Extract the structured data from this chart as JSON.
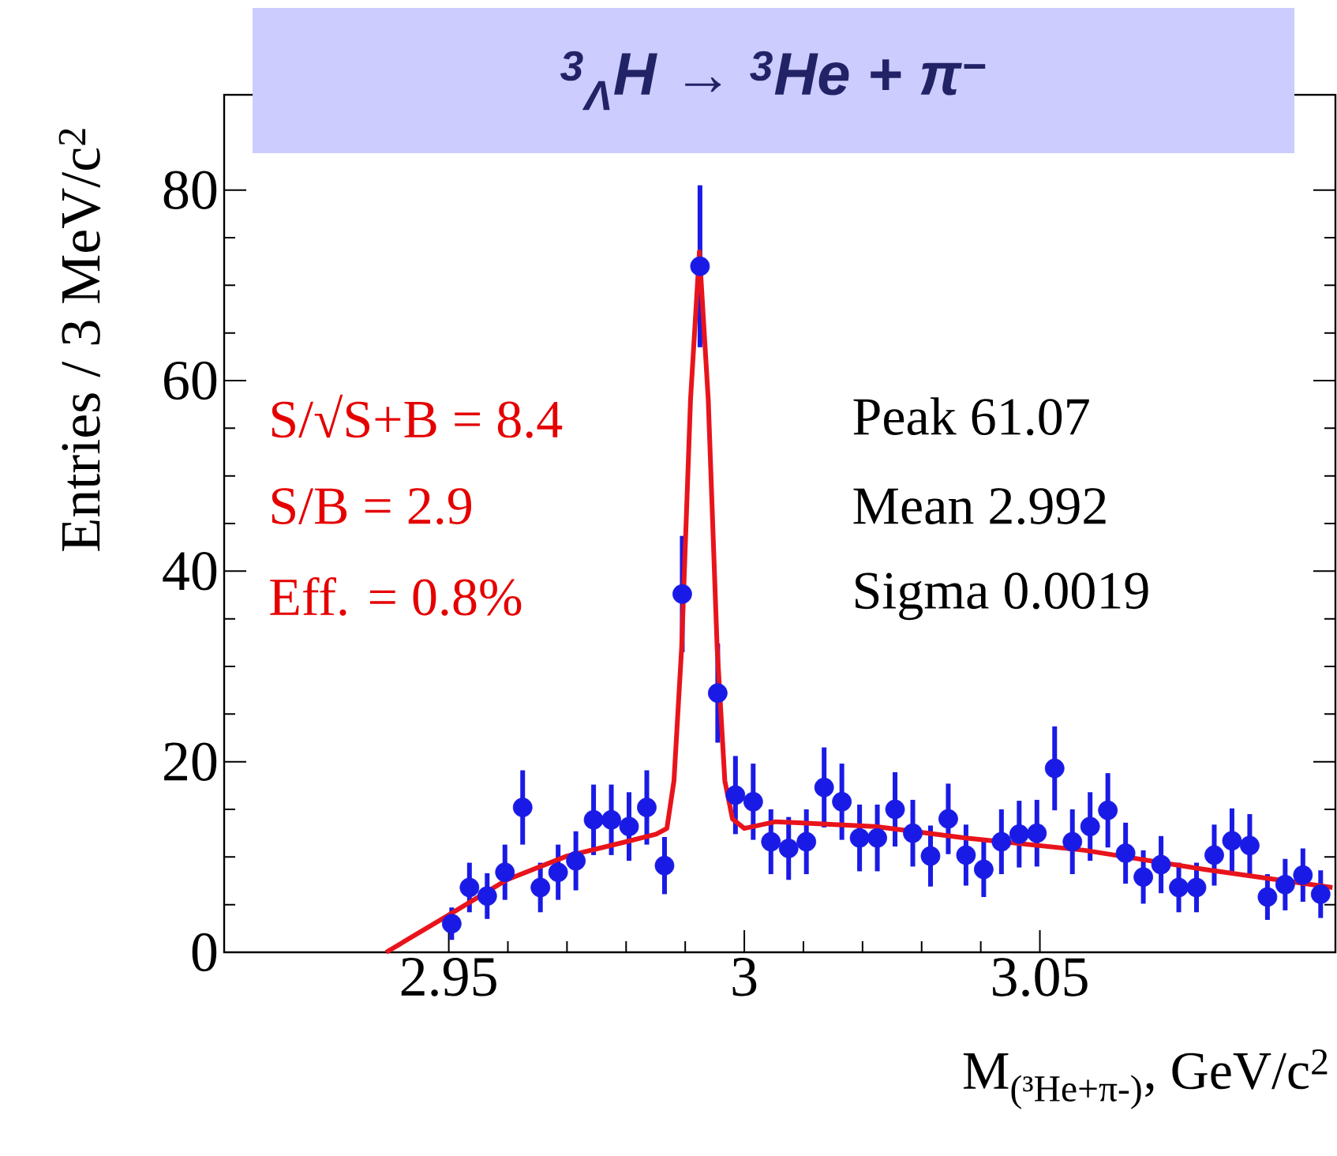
{
  "chart_data": {
    "type": "scatter",
    "title": "$^{3}$$_{Λ}$H → $^{3}$He + π$^{−}$",
    "xlabel": "M$_{(³He+π-)}$, GeV/c$^{2}$",
    "ylabel": "Entries / 3 MeV/c$^{2}$",
    "xlim": [
      2.912,
      3.1
    ],
    "ylim": [
      0,
      90
    ],
    "xticks": [
      2.95,
      3,
      3.05
    ],
    "yticks": [
      0,
      20,
      40,
      60,
      80
    ],
    "marker": "circle",
    "x": [
      2.9505,
      2.9535,
      2.9565,
      2.9595,
      2.9625,
      2.9655,
      2.9685,
      2.9715,
      2.9745,
      2.9775,
      2.9805,
      2.9835,
      2.9865,
      2.9895,
      2.9925,
      2.9955,
      2.9985,
      3.0015,
      3.0045,
      3.0075,
      3.0105,
      3.0135,
      3.0165,
      3.0195,
      3.0225,
      3.0255,
      3.0285,
      3.0315,
      3.0345,
      3.0375,
      3.0405,
      3.0435,
      3.0465,
      3.0495,
      3.0525,
      3.0555,
      3.0585,
      3.0615,
      3.0645,
      3.0675,
      3.0705,
      3.0735,
      3.0765,
      3.0795,
      3.0825,
      3.0855,
      3.0885,
      3.0915,
      3.0945,
      3.0975
    ],
    "series": [
      {
        "color": "#1a1ae6",
        "values": [
          3.0,
          6.8,
          5.9,
          8.4,
          15.2,
          6.8,
          8.4,
          9.6,
          13.9,
          13.9,
          13.2,
          15.2,
          9.1,
          37.6,
          72,
          27.2,
          16.5,
          15.8,
          11.6,
          10.9,
          11.6,
          17.3,
          15.8,
          12.0,
          12.0,
          15.0,
          12.5,
          10.1,
          14.0,
          10.2,
          8.7,
          11.6,
          12.4,
          12.5,
          19.3,
          11.6,
          13.2,
          14.9,
          10.4,
          7.9,
          9.2,
          6.8,
          6.8,
          10.2,
          11.7,
          11.2,
          5.8,
          7.1,
          8.1,
          6.1
        ],
        "errors": [
          1.7,
          2.6,
          2.4,
          2.9,
          3.9,
          2.6,
          2.9,
          3.1,
          3.7,
          3.7,
          3.6,
          3.9,
          3.0,
          6.1,
          8.5,
          5.2,
          4.1,
          4.0,
          3.4,
          3.3,
          3.4,
          4.2,
          4.0,
          3.5,
          3.5,
          3.9,
          3.5,
          3.2,
          3.7,
          3.2,
          2.9,
          3.4,
          3.5,
          3.5,
          4.4,
          3.4,
          3.6,
          3.9,
          3.2,
          2.8,
          3.0,
          2.6,
          2.6,
          3.2,
          3.4,
          3.3,
          2.4,
          2.7,
          2.8,
          2.5
        ]
      },
      {
        "type": "line",
        "marker": "none",
        "color": "#e8141c",
        "x": [
          2.9394,
          2.9497,
          2.9598,
          2.97,
          2.98,
          2.9851,
          2.9869,
          2.9881,
          2.9894,
          2.9909,
          2.9924,
          2.9939,
          2.9954,
          2.9967,
          2.998,
          3.0,
          3.0053,
          3.0222,
          3.0374,
          3.0576,
          3.0778,
          3.0995
        ],
        "values": [
          0,
          3.8,
          7.6,
          10.1,
          11.6,
          12.4,
          13,
          18,
          32,
          58,
          73.5,
          58,
          32,
          18,
          14,
          13.0,
          13.7,
          13.2,
          12.0,
          10.7,
          8.7,
          6.8
        ]
      }
    ],
    "annotations": [
      "S/√S+B = 8.4",
      "S/B = 2.9",
      "Eff. = 0.8%",
      "Peak  61.07",
      "Mean  2.992",
      "Sigma 0.0019"
    ]
  }
}
